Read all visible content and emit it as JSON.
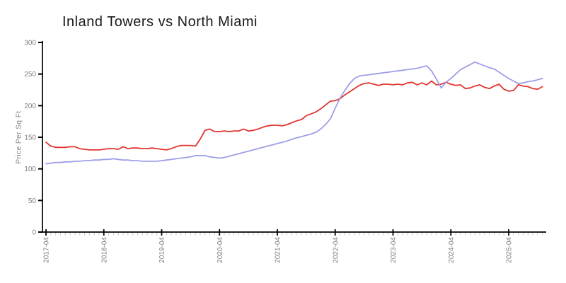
{
  "chart_data": {
    "type": "line",
    "title": "Inland Towers vs North Miami",
    "ylabel": "Price Per Sq Ft",
    "xlabel": "",
    "ylim": [
      0,
      300
    ],
    "yticks": [
      0,
      50,
      100,
      150,
      200,
      250,
      300
    ],
    "xtick_labels": [
      "2017-04",
      "2018-04",
      "2019-04",
      "2020-04",
      "2021-04",
      "2022-04",
      "2023-04",
      "2024-04",
      "2025-04"
    ],
    "grid": false,
    "legend": "none",
    "colors": {
      "axis": "#000000",
      "tick_label": "#7f7f7f",
      "minor_tick": "#c9c9c9",
      "background": "#ffffff"
    },
    "x": [
      "2017-04",
      "2017-05",
      "2017-06",
      "2017-07",
      "2017-08",
      "2017-09",
      "2017-10",
      "2017-11",
      "2017-12",
      "2018-01",
      "2018-02",
      "2018-03",
      "2018-04",
      "2018-05",
      "2018-06",
      "2018-07",
      "2018-08",
      "2018-09",
      "2018-10",
      "2018-11",
      "2018-12",
      "2019-01",
      "2019-02",
      "2019-03",
      "2019-04",
      "2019-05",
      "2019-06",
      "2019-07",
      "2019-08",
      "2019-09",
      "2019-10",
      "2019-11",
      "2019-12",
      "2020-01",
      "2020-02",
      "2020-03",
      "2020-04",
      "2020-05",
      "2020-06",
      "2020-07",
      "2020-08",
      "2020-09",
      "2020-10",
      "2020-11",
      "2020-12",
      "2021-01",
      "2021-02",
      "2021-03",
      "2021-04",
      "2021-05",
      "2021-06",
      "2021-07",
      "2021-08",
      "2021-09",
      "2021-10",
      "2021-11",
      "2021-12",
      "2022-01",
      "2022-02",
      "2022-03",
      "2022-04",
      "2022-05",
      "2022-06",
      "2022-07",
      "2022-08",
      "2022-09",
      "2022-10",
      "2022-11",
      "2022-12",
      "2023-01",
      "2023-02",
      "2023-03",
      "2023-04",
      "2023-05",
      "2023-06",
      "2023-07",
      "2023-08",
      "2023-09",
      "2023-10",
      "2023-11",
      "2023-12",
      "2024-01",
      "2024-02",
      "2024-03",
      "2024-04",
      "2024-05",
      "2024-06",
      "2024-07",
      "2024-08",
      "2024-09",
      "2024-10",
      "2024-11",
      "2024-12",
      "2025-01",
      "2025-02",
      "2025-03",
      "2025-04",
      "2025-05",
      "2025-06",
      "2025-07",
      "2025-08",
      "2025-09",
      "2025-10",
      "2025-11"
    ],
    "series": [
      {
        "name": "Inland Towers",
        "color": "#e13530",
        "values": [
          142,
          136,
          134,
          134,
          134,
          135,
          135,
          132,
          131,
          130,
          130,
          130,
          131,
          132,
          132,
          131,
          135,
          132,
          133,
          133,
          132,
          132,
          133,
          132,
          131,
          130,
          132,
          135,
          137,
          137,
          137,
          136,
          147,
          161,
          163,
          159,
          159,
          160,
          159,
          160,
          160,
          163,
          160,
          161,
          163,
          166,
          168,
          169,
          169,
          168,
          170,
          173,
          176,
          178,
          184,
          187,
          190,
          195,
          201,
          207,
          208,
          211,
          217,
          222,
          227,
          232,
          235,
          236,
          234,
          232,
          234,
          234,
          233,
          234,
          233,
          236,
          237,
          233,
          236,
          233,
          239,
          233,
          234,
          237,
          234,
          232,
          233,
          227,
          228,
          231,
          233,
          229,
          227,
          231,
          234,
          226,
          223,
          224,
          233,
          231,
          230,
          227,
          226,
          230
        ]
      },
      {
        "name": "North Miami",
        "color": "#9e9ee8",
        "values": [
          108,
          109,
          110,
          110,
          111,
          111,
          112,
          112,
          113,
          113,
          114,
          114,
          115,
          115,
          116,
          115,
          114,
          114,
          113,
          113,
          112,
          112,
          112,
          112,
          113,
          114,
          115,
          116,
          117,
          118,
          119,
          121,
          121,
          121,
          119,
          118,
          117,
          118,
          120,
          122,
          124,
          126,
          128,
          130,
          132,
          134,
          136,
          138,
          140,
          142,
          144,
          147,
          149,
          151,
          153,
          155,
          158,
          163,
          170,
          179,
          196,
          212,
          224,
          235,
          243,
          247,
          248,
          249,
          250,
          251,
          252,
          253,
          254,
          255,
          256,
          257,
          258,
          259,
          261,
          263,
          255,
          242,
          228,
          237,
          243,
          250,
          257,
          261,
          265,
          269,
          266,
          263,
          260,
          258,
          253,
          248,
          243,
          239,
          235,
          236,
          238,
          239,
          241,
          243
        ]
      }
    ]
  }
}
